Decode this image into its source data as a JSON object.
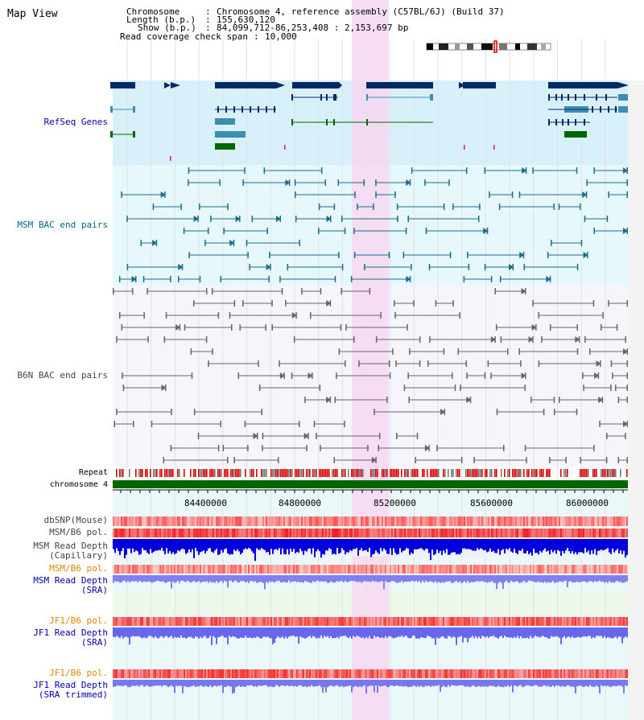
{
  "view_title": "Map View",
  "info": {
    "chromosome_label": "Chromosome",
    "chromosome_value": "Chromosome 4, reference assembly (C57BL/6J) (Build 37)",
    "length_label": "Length (b.p.)",
    "length_value": "155,630,120",
    "show_label": "Show (b.p.)",
    "show_value": "84,099,712-86,253,408 : 2,153,697 bp",
    "coverage_label": "Read coverage check span",
    "coverage_value": "10,000"
  },
  "tracks": {
    "refseq": "RefSeq Genes",
    "msm_bac": "MSM BAC end pairs",
    "b6n_bac": "B6N BAC end pairs",
    "repeat": "Repeat",
    "chromosome": "chromosome 4",
    "dbsnp": "dbSNP(Mouse)",
    "msm_b6_pol_1": "MSM/B6 pol.",
    "msm_depth_cap_1": "MSM Read Depth",
    "msm_depth_cap_2": "(Capillary)",
    "msm_b6_pol_2": "MSM/B6 pol.",
    "msm_depth_sra_1": "MSM Read Depth",
    "msm_depth_sra_2": "(SRA)",
    "jf1_b6_pol_1": "JF1/B6 pol.",
    "jf1_depth_sra_1": "JF1 Read Depth",
    "jf1_depth_sra_2": "(SRA)",
    "jf1_b6_pol_2": "JF1/B6 pol.",
    "jf1_depth_trim_1": "JF1 Read Depth",
    "jf1_depth_trim_2": "(SRA trimmed)"
  },
  "axis": {
    "ticks": [
      "84400000",
      "84800000",
      "85200000",
      "85600000",
      "86000000"
    ]
  },
  "colors": {
    "label_blue": "#0000aa",
    "label_teal": "#006688",
    "label_gray": "#444444",
    "label_orange": "#dd8800",
    "highlight": "#f7d8f2",
    "gene_dark": "#002a66",
    "gene_green": "#006600",
    "bac_teal": "#1a6e8a",
    "bac_gray": "#666666",
    "chrom_green": "#006600"
  }
}
